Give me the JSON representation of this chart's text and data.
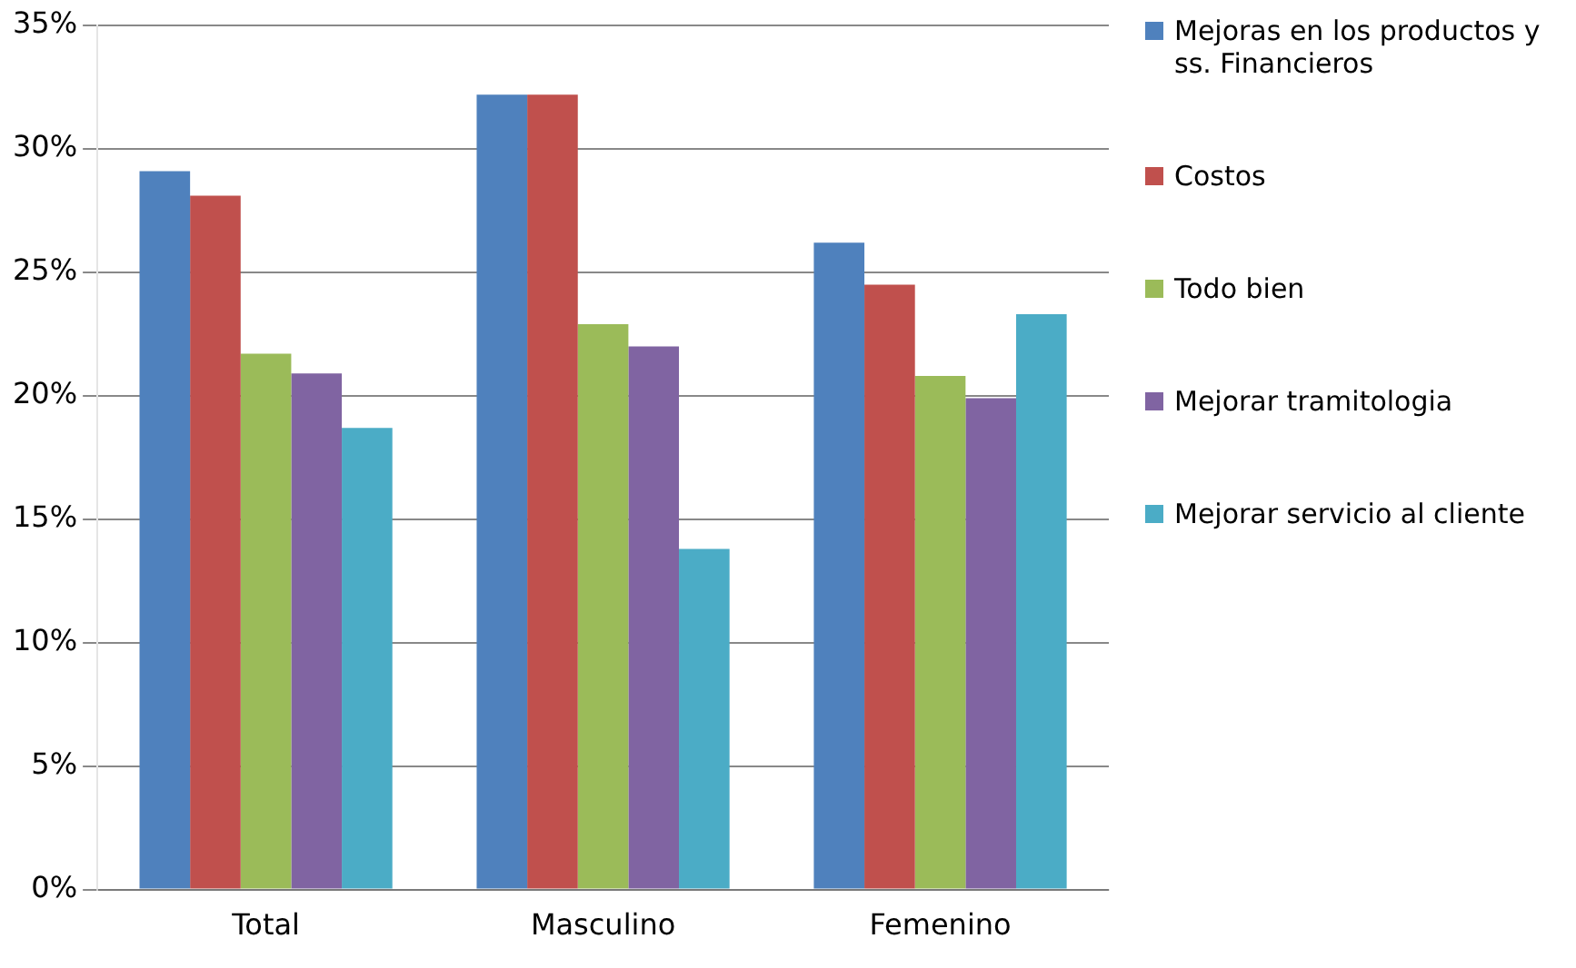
{
  "chart_data": {
    "type": "bar",
    "categories": [
      "Total",
      "Masculino",
      "Femenino"
    ],
    "series": [
      {
        "name": "Mejoras en los productos y ss. Financieros",
        "color": "#4f81bd",
        "values": [
          29.1,
          32.2,
          26.2
        ]
      },
      {
        "name": "Costos",
        "color": "#c0504d",
        "values": [
          28.1,
          32.2,
          24.5
        ]
      },
      {
        "name": "Todo bien",
        "color": "#9bbb59",
        "values": [
          21.7,
          22.9,
          20.8
        ]
      },
      {
        "name": "Mejorar tramitologia",
        "color": "#8064a2",
        "values": [
          20.9,
          22.0,
          19.9
        ]
      },
      {
        "name": "Mejorar servicio al cliente",
        "color": "#4bacc6",
        "values": [
          18.7,
          13.8,
          23.3
        ]
      }
    ],
    "ylim": [
      0,
      35
    ],
    "yticks": [
      {
        "value": 0,
        "label": "0%"
      },
      {
        "value": 5,
        "label": "5%"
      },
      {
        "value": 10,
        "label": "10%"
      },
      {
        "value": 15,
        "label": "15%"
      },
      {
        "value": 20,
        "label": "20%"
      },
      {
        "value": 25,
        "label": "25%"
      },
      {
        "value": 30,
        "label": "30%"
      },
      {
        "value": 35,
        "label": "35%"
      }
    ],
    "grid": "y",
    "legend": "right"
  }
}
